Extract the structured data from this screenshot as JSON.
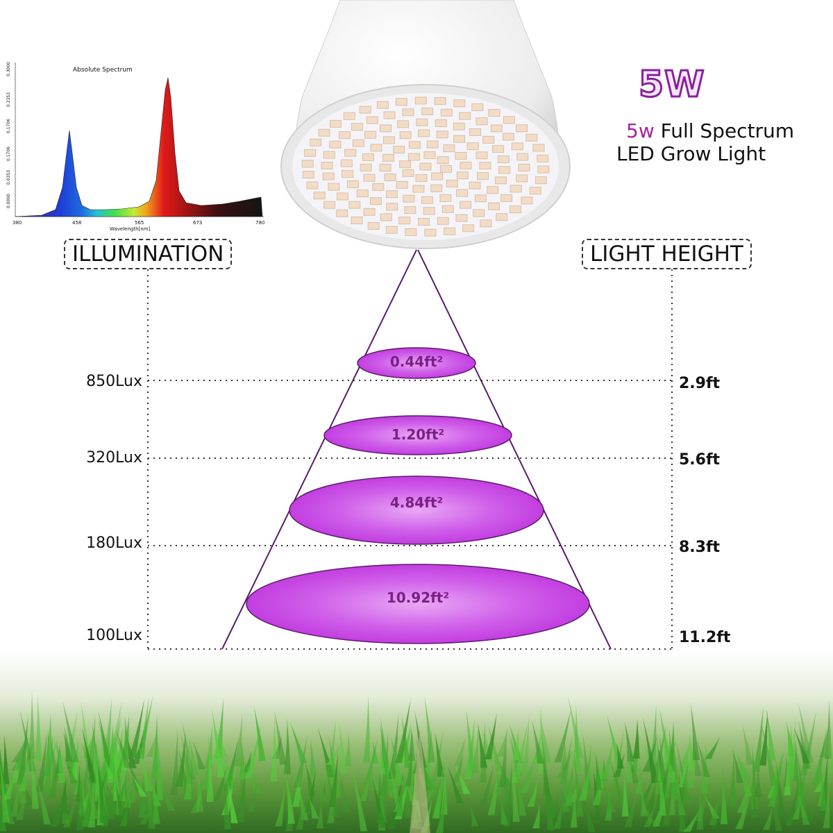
{
  "spectrum": {
    "title": "Absolute Spectrum",
    "xlabel": "Wavelength[nm]",
    "xticks": [
      "380",
      "458",
      "565",
      "673",
      "780"
    ],
    "yticks": [
      "0.0000",
      "0.0353",
      "0.1706",
      "0.1706",
      "0.2353",
      "0.3000"
    ]
  },
  "title": {
    "power": "5W",
    "accent": "5w",
    "line1_rest": " Full Spectrum",
    "line2": "LED Grow Light"
  },
  "labels": {
    "illumination": "ILLUMINATION",
    "light_height": "LIGHT HEIGHT"
  },
  "levels": [
    {
      "lux": "850Lux",
      "height": "2.9ft",
      "area": "0.44ft²"
    },
    {
      "lux": "320Lux",
      "height": "5.6ft",
      "area": "1.20ft²"
    },
    {
      "lux": "180Lux",
      "height": "8.3ft",
      "area": "4.84ft²"
    },
    {
      "lux": "100Lux",
      "height": "11.2ft",
      "area": "10.92ft²"
    }
  ],
  "colors": {
    "accent": "#a2229f",
    "beam": "#c94fe6",
    "beam_line": "#5a1a6a"
  }
}
